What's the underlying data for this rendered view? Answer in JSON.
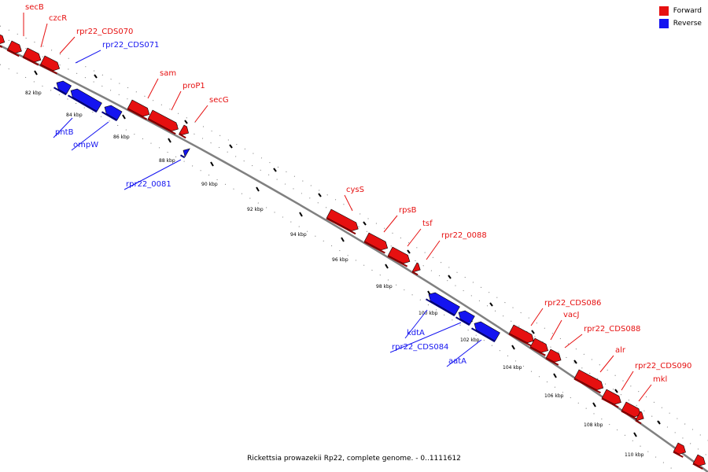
{
  "legend": [
    {
      "label": "Forward",
      "color": "#e61010"
    },
    {
      "label": "Reverse",
      "color": "#1414f0"
    }
  ],
  "caption": "Rickettsia prowazekii Rp22, complete genome. - 0..1111612",
  "colors": {
    "forward": "#e61010",
    "reverse": "#1414f0",
    "backbone": "#808080"
  },
  "ticks": [
    "82 kbp",
    "84 kbp",
    "86 kbp",
    "88 kbp",
    "90 kbp",
    "92 kbp",
    "94 kbp",
    "96 kbp",
    "98 kbp",
    "100 kbp",
    "102 kbp",
    "104 kbp",
    "106 kbp",
    "108 kbp",
    "110 kbp"
  ],
  "genes": [
    {
      "name": "secB",
      "strand": "forward"
    },
    {
      "name": "czcR",
      "strand": "forward"
    },
    {
      "name": "rpr22_CDS070",
      "strand": "forward"
    },
    {
      "name": "rpr22_CDS071",
      "strand": "reverse"
    },
    {
      "name": "pntB",
      "strand": "reverse"
    },
    {
      "name": "ompW",
      "strand": "reverse"
    },
    {
      "name": "sam",
      "strand": "forward"
    },
    {
      "name": "proP1",
      "strand": "forward"
    },
    {
      "name": "secG",
      "strand": "forward"
    },
    {
      "name": "rpr22_0081",
      "strand": "reverse"
    },
    {
      "name": "cysS",
      "strand": "forward"
    },
    {
      "name": "rpsB",
      "strand": "forward"
    },
    {
      "name": "tsf",
      "strand": "forward"
    },
    {
      "name": "rpr22_0088",
      "strand": "forward"
    },
    {
      "name": "kdtA",
      "strand": "reverse"
    },
    {
      "name": "rpr22_CDS084",
      "strand": "reverse"
    },
    {
      "name": "aatA",
      "strand": "reverse"
    },
    {
      "name": "rpr22_CDS086",
      "strand": "forward"
    },
    {
      "name": "vacJ",
      "strand": "forward"
    },
    {
      "name": "rpr22_CDS088",
      "strand": "forward"
    },
    {
      "name": "alr",
      "strand": "forward"
    },
    {
      "name": "rpr22_CDS090",
      "strand": "forward"
    },
    {
      "name": "mkl",
      "strand": "forward"
    }
  ]
}
